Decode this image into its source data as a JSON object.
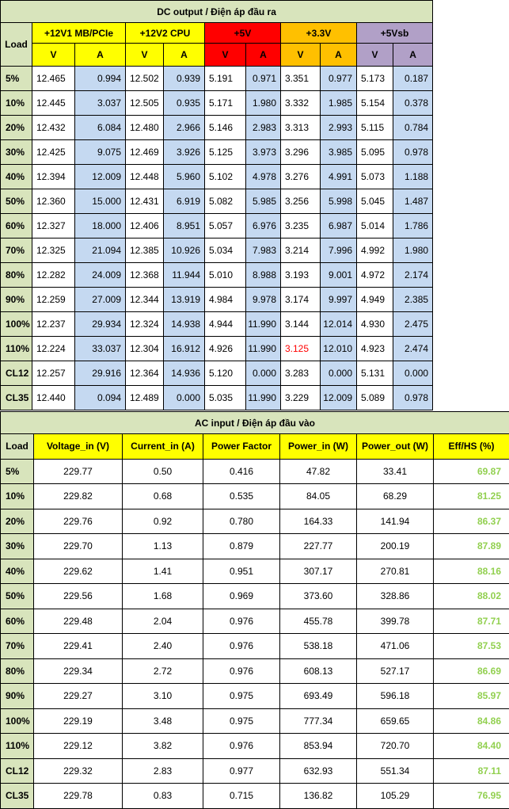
{
  "dc": {
    "title": "DC output / Điện áp đầu ra",
    "load_header": "Load",
    "v_label": "V",
    "a_label": "A",
    "rails": [
      {
        "name": "+12V1 MB/PCIe",
        "color": "#ffff00"
      },
      {
        "name": "+12V2 CPU",
        "color": "#ffff00"
      },
      {
        "name": "+5V",
        "color": "#ff0000"
      },
      {
        "name": "+3.3V",
        "color": "#ffc000"
      },
      {
        "name": "+5Vsb",
        "color": "#b1a0c7"
      }
    ],
    "rows": [
      {
        "load": "5%",
        "vals": [
          "12.465",
          "0.994",
          "12.502",
          "0.939",
          "5.191",
          "0.971",
          "3.351",
          "0.977",
          "5.173",
          "0.187"
        ]
      },
      {
        "load": "10%",
        "vals": [
          "12.445",
          "3.037",
          "12.505",
          "0.935",
          "5.171",
          "1.980",
          "3.332",
          "1.985",
          "5.154",
          "0.378"
        ]
      },
      {
        "load": "20%",
        "vals": [
          "12.432",
          "6.084",
          "12.480",
          "2.966",
          "5.146",
          "2.983",
          "3.313",
          "2.993",
          "5.115",
          "0.784"
        ]
      },
      {
        "load": "30%",
        "vals": [
          "12.425",
          "9.075",
          "12.469",
          "3.926",
          "5.125",
          "3.973",
          "3.296",
          "3.985",
          "5.095",
          "0.978"
        ]
      },
      {
        "load": "40%",
        "vals": [
          "12.394",
          "12.009",
          "12.448",
          "5.960",
          "5.102",
          "4.978",
          "3.276",
          "4.991",
          "5.073",
          "1.188"
        ]
      },
      {
        "load": "50%",
        "vals": [
          "12.360",
          "15.000",
          "12.431",
          "6.919",
          "5.082",
          "5.985",
          "3.256",
          "5.998",
          "5.045",
          "1.487"
        ]
      },
      {
        "load": "60%",
        "vals": [
          "12.327",
          "18.000",
          "12.406",
          "8.951",
          "5.057",
          "6.976",
          "3.235",
          "6.987",
          "5.014",
          "1.786"
        ]
      },
      {
        "load": "70%",
        "vals": [
          "12.325",
          "21.094",
          "12.385",
          "10.926",
          "5.034",
          "7.983",
          "3.214",
          "7.996",
          "4.992",
          "1.980"
        ]
      },
      {
        "load": "80%",
        "vals": [
          "12.282",
          "24.009",
          "12.368",
          "11.944",
          "5.010",
          "8.988",
          "3.193",
          "9.001",
          "4.972",
          "2.174"
        ]
      },
      {
        "load": "90%",
        "vals": [
          "12.259",
          "27.009",
          "12.344",
          "13.919",
          "4.984",
          "9.978",
          "3.174",
          "9.997",
          "4.949",
          "2.385"
        ]
      },
      {
        "load": "100%",
        "vals": [
          "12.237",
          "29.934",
          "12.324",
          "14.938",
          "4.944",
          "11.990",
          "3.144",
          "12.014",
          "4.930",
          "2.475"
        ]
      },
      {
        "load": "110%",
        "vals": [
          "12.224",
          "33.037",
          "12.304",
          "16.912",
          "4.926",
          "11.990",
          "3.125",
          "12.010",
          "4.923",
          "2.474"
        ]
      },
      {
        "load": "CL12",
        "vals": [
          "12.257",
          "29.916",
          "12.364",
          "14.936",
          "5.120",
          "0.000",
          "3.283",
          "0.000",
          "5.131",
          "0.000"
        ]
      },
      {
        "load": "CL35",
        "vals": [
          "12.440",
          "0.094",
          "12.489",
          "0.000",
          "5.035",
          "11.990",
          "3.229",
          "12.009",
          "5.089",
          "0.978"
        ]
      }
    ],
    "highlight_color": "#ff0000"
  },
  "ac": {
    "title": "AC input / Điện áp đầu vào",
    "headers": [
      "Load",
      "Voltage_in (V)",
      "Current_in (A)",
      "Power Factor",
      "Power_in (W)",
      "Power_out (W)",
      "Eff/HS (%)"
    ],
    "eff_color": "#92d050",
    "rows": [
      {
        "load": "5%",
        "vin": "229.77",
        "iin": "0.50",
        "pf": "0.416",
        "pin": "47.82",
        "pout": "33.41",
        "eff": "69.87"
      },
      {
        "load": "10%",
        "vin": "229.82",
        "iin": "0.68",
        "pf": "0.535",
        "pin": "84.05",
        "pout": "68.29",
        "eff": "81.25"
      },
      {
        "load": "20%",
        "vin": "229.76",
        "iin": "0.92",
        "pf": "0.780",
        "pin": "164.33",
        "pout": "141.94",
        "eff": "86.37"
      },
      {
        "load": "30%",
        "vin": "229.70",
        "iin": "1.13",
        "pf": "0.879",
        "pin": "227.77",
        "pout": "200.19",
        "eff": "87.89"
      },
      {
        "load": "40%",
        "vin": "229.62",
        "iin": "1.41",
        "pf": "0.951",
        "pin": "307.17",
        "pout": "270.81",
        "eff": "88.16"
      },
      {
        "load": "50%",
        "vin": "229.56",
        "iin": "1.68",
        "pf": "0.969",
        "pin": "373.60",
        "pout": "328.86",
        "eff": "88.02"
      },
      {
        "load": "60%",
        "vin": "229.48",
        "iin": "2.04",
        "pf": "0.976",
        "pin": "455.78",
        "pout": "399.78",
        "eff": "87.71"
      },
      {
        "load": "70%",
        "vin": "229.41",
        "iin": "2.40",
        "pf": "0.976",
        "pin": "538.18",
        "pout": "471.06",
        "eff": "87.53"
      },
      {
        "load": "80%",
        "vin": "229.34",
        "iin": "2.72",
        "pf": "0.976",
        "pin": "608.13",
        "pout": "527.17",
        "eff": "86.69"
      },
      {
        "load": "90%",
        "vin": "229.27",
        "iin": "3.10",
        "pf": "0.975",
        "pin": "693.49",
        "pout": "596.18",
        "eff": "85.97"
      },
      {
        "load": "100%",
        "vin": "229.19",
        "iin": "3.48",
        "pf": "0.975",
        "pin": "777.34",
        "pout": "659.65",
        "eff": "84.86"
      },
      {
        "load": "110%",
        "vin": "229.12",
        "iin": "3.82",
        "pf": "0.976",
        "pin": "853.94",
        "pout": "720.70",
        "eff": "84.40"
      },
      {
        "load": "CL12",
        "vin": "229.32",
        "iin": "2.83",
        "pf": "0.977",
        "pin": "632.93",
        "pout": "551.34",
        "eff": "87.11"
      },
      {
        "load": "CL35",
        "vin": "229.78",
        "iin": "0.83",
        "pf": "0.715",
        "pin": "136.82",
        "pout": "105.29",
        "eff": "76.95"
      }
    ]
  }
}
